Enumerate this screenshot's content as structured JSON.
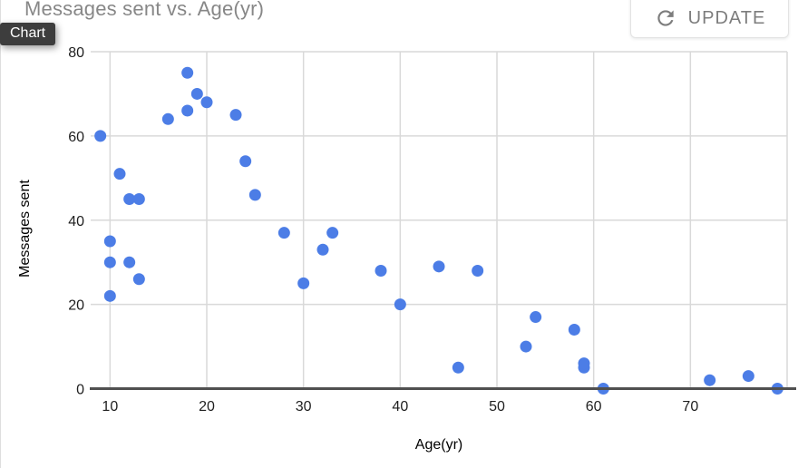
{
  "header": {
    "title": "Messages sent vs. Age(yr)",
    "chart_tag": "Chart",
    "update_label": "UPDATE"
  },
  "colors": {
    "point": "#4c7de6",
    "grid": "#d9d9d9",
    "axis_line": "#505050",
    "tick_label": "#1f1f1f",
    "axis_title": "#000000",
    "chart_title": "#878787",
    "button_text": "#7d7d7d",
    "button_border": "#e3e3e3",
    "button_bg": "#ffffff",
    "tag_bg": "#3d3d3d",
    "tag_text": "#ffffff"
  },
  "chart_data": {
    "type": "scatter",
    "title": "Messages sent vs. Age(yr)",
    "xlabel": "Age(yr)",
    "ylabel": "Messages sent",
    "x_domain": [
      8,
      80
    ],
    "y_domain": [
      0,
      80
    ],
    "x_ticks": [
      10,
      20,
      30,
      40,
      50,
      60,
      70
    ],
    "x_gridlines": [
      10,
      20,
      30,
      40,
      50,
      60,
      70,
      80
    ],
    "y_ticks": [
      0,
      20,
      40,
      60,
      80
    ],
    "grid": true,
    "legend": "none",
    "points": [
      [
        9,
        60
      ],
      [
        10,
        22
      ],
      [
        10,
        30
      ],
      [
        10,
        35
      ],
      [
        11,
        51
      ],
      [
        12,
        30
      ],
      [
        12,
        45
      ],
      [
        13,
        26
      ],
      [
        13,
        45
      ],
      [
        16,
        64
      ],
      [
        18,
        66
      ],
      [
        18,
        75
      ],
      [
        19,
        70
      ],
      [
        20,
        68
      ],
      [
        23,
        65
      ],
      [
        24,
        54
      ],
      [
        25,
        46
      ],
      [
        28,
        37
      ],
      [
        30,
        25
      ],
      [
        32,
        33
      ],
      [
        33,
        37
      ],
      [
        38,
        28
      ],
      [
        40,
        20
      ],
      [
        44,
        29
      ],
      [
        46,
        5
      ],
      [
        48,
        28
      ],
      [
        53,
        10
      ],
      [
        54,
        17
      ],
      [
        58,
        14
      ],
      [
        59,
        5
      ],
      [
        59,
        6
      ],
      [
        61,
        0
      ],
      [
        72,
        2
      ],
      [
        76,
        3
      ],
      [
        79,
        0
      ]
    ]
  }
}
